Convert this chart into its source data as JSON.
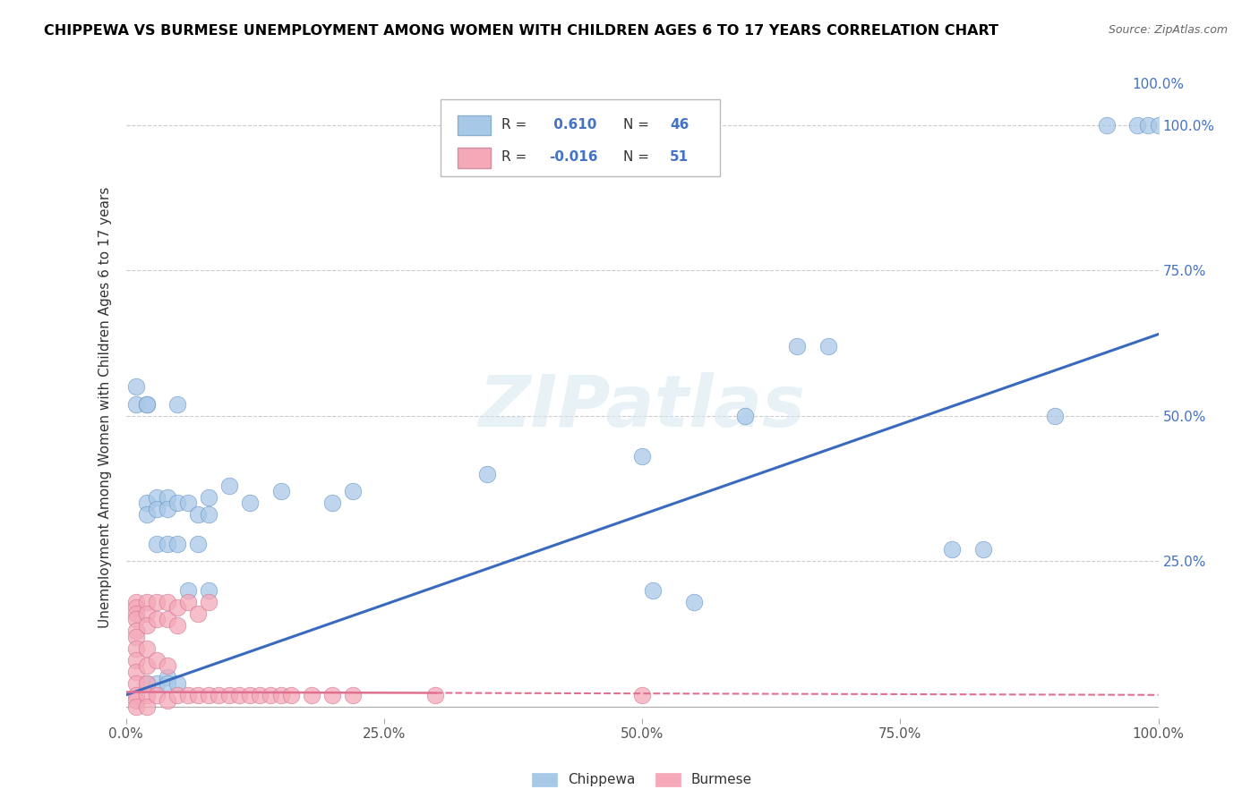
{
  "title": "CHIPPEWA VS BURMESE UNEMPLOYMENT AMONG WOMEN WITH CHILDREN AGES 6 TO 17 YEARS CORRELATION CHART",
  "source": "Source: ZipAtlas.com",
  "ylabel": "Unemployment Among Women with Children Ages 6 to 17 years",
  "chippewa_R": 0.61,
  "chippewa_N": 46,
  "burmese_R": -0.016,
  "burmese_N": 51,
  "chippewa_color": "#a8c8e8",
  "burmese_color": "#f4a8b8",
  "chippewa_line_color": "#3a6abf",
  "burmese_line_color": "#e07090",
  "background_color": "#ffffff",
  "grid_color": "#cccccc",
  "title_color": "#000000",
  "accent_color": "#4472c4",
  "xlim": [
    0,
    1.0
  ],
  "ylim": [
    -0.02,
    1.05
  ],
  "xticks": [
    0.0,
    0.25,
    0.5,
    0.75,
    1.0
  ],
  "yticks": [
    0.0,
    0.25,
    0.5,
    0.75,
    1.0
  ],
  "xticklabels": [
    "0.0%",
    "25.0%",
    "50.0%",
    "75.0%",
    "100.0%"
  ],
  "right_yticklabels": [
    "25.0%",
    "50.0%",
    "75.0%",
    "100.0%"
  ],
  "watermark": "ZIPatlas",
  "chippewa_x": [
    0.01,
    0.01,
    0.02,
    0.02,
    0.02,
    0.02,
    0.02,
    0.03,
    0.03,
    0.03,
    0.03,
    0.04,
    0.04,
    0.04,
    0.04,
    0.04,
    0.05,
    0.05,
    0.05,
    0.05,
    0.06,
    0.06,
    0.07,
    0.07,
    0.08,
    0.08,
    0.08,
    0.1,
    0.12,
    0.15,
    0.2,
    0.22,
    0.35,
    0.5,
    0.51,
    0.55,
    0.6,
    0.65,
    0.68,
    0.8,
    0.83,
    0.9,
    0.95,
    0.98,
    0.99,
    1.0
  ],
  "chippewa_y": [
    0.55,
    0.52,
    0.52,
    0.52,
    0.35,
    0.33,
    0.04,
    0.36,
    0.34,
    0.28,
    0.04,
    0.36,
    0.34,
    0.28,
    0.05,
    0.04,
    0.52,
    0.35,
    0.28,
    0.04,
    0.35,
    0.2,
    0.33,
    0.28,
    0.36,
    0.33,
    0.2,
    0.38,
    0.35,
    0.37,
    0.35,
    0.37,
    0.4,
    0.43,
    0.2,
    0.18,
    0.5,
    0.62,
    0.62,
    0.27,
    0.27,
    0.5,
    1.0,
    1.0,
    1.0,
    1.0
  ],
  "burmese_x": [
    0.01,
    0.01,
    0.01,
    0.01,
    0.01,
    0.01,
    0.01,
    0.01,
    0.01,
    0.01,
    0.01,
    0.01,
    0.01,
    0.02,
    0.02,
    0.02,
    0.02,
    0.02,
    0.02,
    0.02,
    0.02,
    0.03,
    0.03,
    0.03,
    0.03,
    0.04,
    0.04,
    0.04,
    0.04,
    0.05,
    0.05,
    0.05,
    0.06,
    0.06,
    0.07,
    0.07,
    0.08,
    0.08,
    0.09,
    0.1,
    0.11,
    0.12,
    0.13,
    0.14,
    0.15,
    0.16,
    0.18,
    0.2,
    0.22,
    0.3,
    0.5
  ],
  "burmese_y": [
    0.18,
    0.17,
    0.16,
    0.15,
    0.13,
    0.12,
    0.1,
    0.08,
    0.06,
    0.04,
    0.02,
    0.01,
    0.0,
    0.18,
    0.16,
    0.14,
    0.1,
    0.07,
    0.04,
    0.02,
    0.0,
    0.18,
    0.15,
    0.08,
    0.02,
    0.18,
    0.15,
    0.07,
    0.01,
    0.17,
    0.14,
    0.02,
    0.18,
    0.02,
    0.16,
    0.02,
    0.18,
    0.02,
    0.02,
    0.02,
    0.02,
    0.02,
    0.02,
    0.02,
    0.02,
    0.02,
    0.02,
    0.02,
    0.02,
    0.02,
    0.02
  ],
  "legend_labels": [
    "Chippewa",
    "Burmese"
  ]
}
